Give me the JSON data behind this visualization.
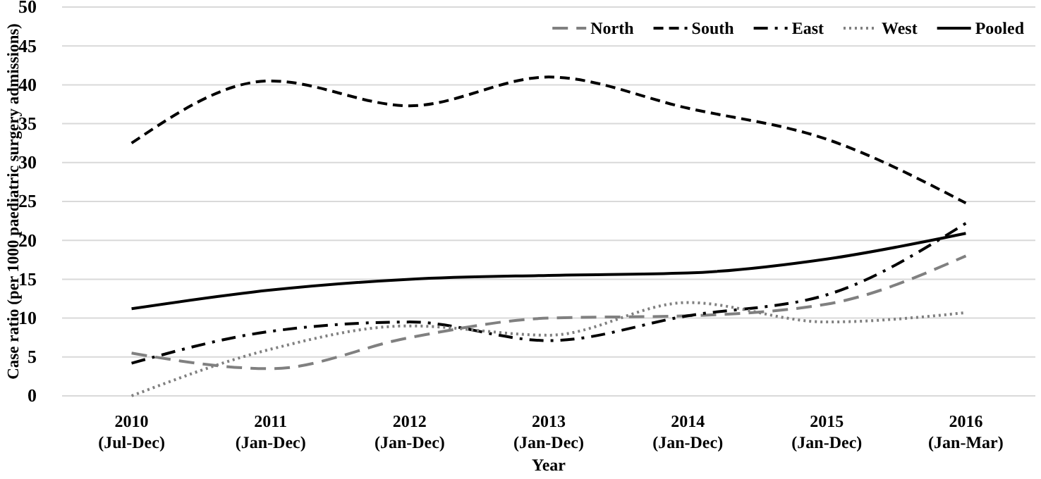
{
  "chart_data": {
    "type": "line",
    "xlabel": "Year",
    "ylabel": "Case ratio (per 1000 paediatric surgery admissions)",
    "categories": [
      "2010\n(Jul-Dec)",
      "2011\n(Jan-Dec)",
      "2012\n(Jan-Dec)",
      "2013\n(Jan-Dec)",
      "2014\n(Jan-Dec)",
      "2015\n(Jan-Dec)",
      "2016\n(Jan-Mar)"
    ],
    "series": [
      {
        "name": "North",
        "color": "#808080",
        "line_style": "longdash",
        "values": [
          5.5,
          3.5,
          7.5,
          10,
          10.3,
          11.8,
          18
        ]
      },
      {
        "name": "South",
        "color": "#000000",
        "line_style": "dashed",
        "values": [
          32.5,
          40.5,
          37.3,
          41,
          37,
          33,
          24.8
        ]
      },
      {
        "name": "East",
        "color": "#000000",
        "line_style": "dashdot",
        "values": [
          4.2,
          8.3,
          9.5,
          7.1,
          10.3,
          13,
          22.2
        ]
      },
      {
        "name": "West",
        "color": "#808080",
        "line_style": "dotted",
        "values": [
          0,
          6,
          9,
          7.8,
          12,
          9.5,
          10.7
        ]
      },
      {
        "name": "Pooled",
        "color": "#000000",
        "line_style": "solid",
        "values": [
          11.2,
          13.6,
          15,
          15.5,
          15.8,
          17.6,
          20.9
        ]
      }
    ],
    "ylim": [
      0,
      50
    ],
    "yticks": [
      0,
      5,
      10,
      15,
      20,
      25,
      30,
      35,
      40,
      45,
      50
    ],
    "grid": "y",
    "legend": "top right",
    "marker": "none"
  }
}
